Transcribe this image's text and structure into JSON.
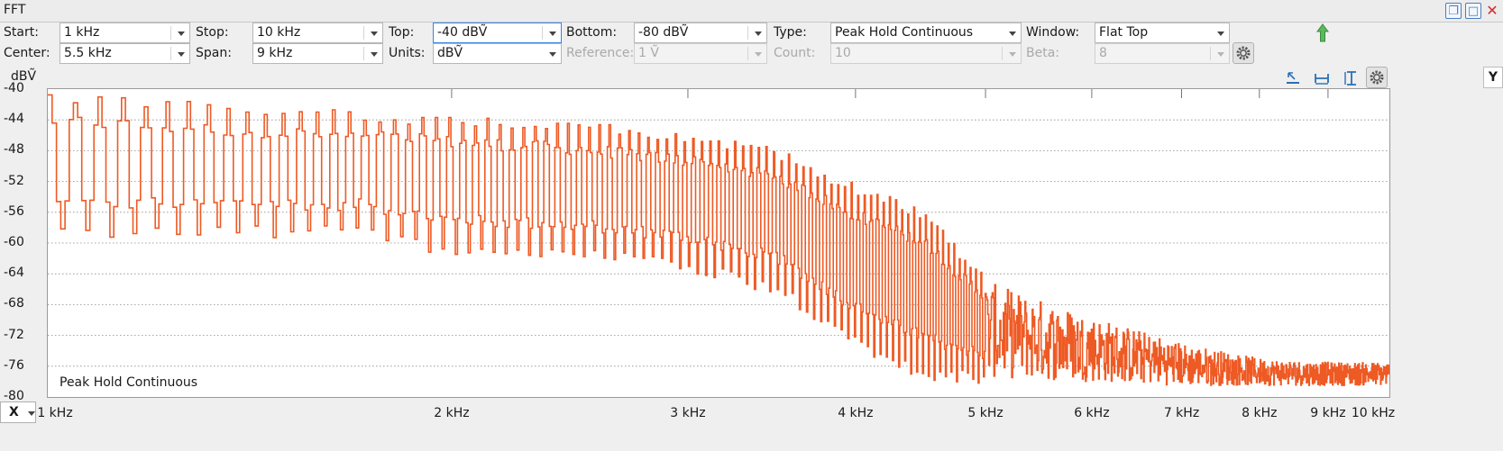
{
  "window": {
    "title": "FFT"
  },
  "controls": {
    "start": {
      "label": "Start:",
      "value": "1 kHz"
    },
    "stop": {
      "label": "Stop:",
      "value": "10 kHz"
    },
    "top": {
      "label": "Top:",
      "value": "-40 dBṼ"
    },
    "bottom": {
      "label": "Bottom:",
      "value": "-80 dBṼ"
    },
    "type": {
      "label": "Type:",
      "value": "Peak Hold Continuous"
    },
    "window": {
      "label": "Window:",
      "value": "Flat Top"
    },
    "center": {
      "label": "Center:",
      "value": "5.5 kHz"
    },
    "span": {
      "label": "Span:",
      "value": "9 kHz"
    },
    "units": {
      "label": "Units:",
      "value": "dBṼ"
    },
    "reference": {
      "label": "Reference:",
      "value": "1 Ṽ"
    },
    "count": {
      "label": "Count:",
      "value": "10"
    },
    "beta": {
      "label": "Beta:",
      "value": "8"
    }
  },
  "axis": {
    "y_unit": "dBṼ",
    "x_button": "X",
    "y_button": "Y"
  },
  "chart_data": {
    "type": "line",
    "title": "",
    "legend": "Peak Hold Continuous",
    "legend_placement": "bottom-left",
    "xlabel": "",
    "ylabel": "dBṼ",
    "x_scale": "log",
    "xlim": [
      1000,
      10000
    ],
    "ylim": [
      -80,
      -40
    ],
    "grid": true,
    "color": "#ee5a24",
    "y_ticks": [
      "-40",
      "-44",
      "-48",
      "-52",
      "-56",
      "-60",
      "-64",
      "-68",
      "-72",
      "-76",
      "-80"
    ],
    "x_ticks": [
      {
        "value": 1000,
        "label": "1 kHz"
      },
      {
        "value": 2000,
        "label": "2 kHz"
      },
      {
        "value": 3000,
        "label": "3 kHz"
      },
      {
        "value": 4000,
        "label": "4 kHz"
      },
      {
        "value": 5000,
        "label": "5 kHz"
      },
      {
        "value": 6000,
        "label": "6 kHz"
      },
      {
        "value": 7000,
        "label": "7 kHz"
      },
      {
        "value": 8000,
        "label": "8 kHz"
      },
      {
        "value": 9000,
        "label": "9 kHz"
      },
      {
        "value": 10000,
        "label": "10 kHz"
      }
    ],
    "envelope": {
      "x": [
        1000,
        1300,
        1700,
        2000,
        2500,
        3000,
        3500,
        4000,
        4500,
        5000,
        6000,
        7000,
        8000,
        9000,
        10000
      ],
      "peak": [
        -41,
        -42.5,
        -43.5,
        -44,
        -45,
        -46.5,
        -48.5,
        -53,
        -56.5,
        -65,
        -69.5,
        -73,
        -75,
        -75.5,
        -75.5
      ],
      "trough": [
        -59,
        -58.5,
        -58.5,
        -61,
        -61.5,
        -63,
        -66,
        -73,
        -77,
        -77.5,
        -78,
        -78.5,
        -78.5,
        -78.5,
        -78.5
      ]
    },
    "comb_spacing_hz": 45
  }
}
